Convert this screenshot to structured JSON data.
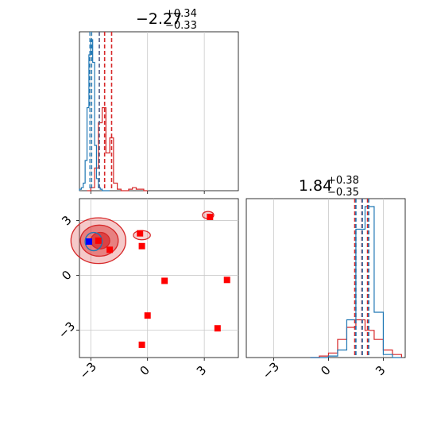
{
  "chart_data": {
    "type": "corner",
    "params": [
      {
        "median": -2.27,
        "plus": "+0.34",
        "minus": "−0.33",
        "range": [
          -3.6,
          4.8
        ]
      },
      {
        "median": 1.84,
        "plus": "+0.38",
        "minus": "−0.35",
        "range": [
          -4.5,
          4.2
        ]
      }
    ],
    "ticks": [
      -3,
      0,
      3
    ],
    "tick_labels": [
      "−3",
      "0",
      "3"
    ],
    "grid": true,
    "colors": {
      "sample_a": "#1f77b4",
      "sample_b": "#d62728",
      "marker_true": "#0000ff",
      "marker_points": "#ff0000"
    },
    "hist_a_bins": [
      -3.6,
      -3.5,
      -3.4,
      -3.3,
      -3.2,
      -3.1,
      -3.0,
      -2.9,
      -2.8,
      -2.7,
      -2.6,
      -2.5,
      -2.4,
      -2.3,
      -2.2,
      -2.1,
      -2.0
    ],
    "hist_a_counts": [
      0.01,
      0.02,
      0.05,
      0.2,
      0.55,
      0.9,
      1.0,
      0.85,
      0.3,
      0.08,
      0.02,
      0.01,
      0.0,
      0.0,
      0.0,
      0.0
    ],
    "hist_b_bins": [
      -3.2,
      -3.0,
      -2.8,
      -2.6,
      -2.4,
      -2.2,
      -2.0,
      -1.8,
      -1.6,
      -1.4,
      -1.2,
      -1.0,
      -0.8,
      -0.6,
      -0.4,
      -0.2,
      0.0
    ],
    "hist_b_counts": [
      0.0,
      0.02,
      0.15,
      0.45,
      0.55,
      0.25,
      0.35,
      0.05,
      0.01,
      0.0,
      0.0,
      0.01,
      0.02,
      0.01,
      0.01,
      0.0
    ],
    "quantiles_a_x": [
      -3.05,
      -2.55,
      -2.95
    ],
    "quantiles_b_x": [
      -2.55,
      -2.27,
      -1.9
    ],
    "quantiles_a_y": [
      1.5,
      1.85,
      2.2
    ],
    "quantiles_b_y": [
      1.45,
      1.84,
      2.15
    ],
    "hist_y_a_bins": [
      -1.0,
      -0.5,
      0.0,
      0.5,
      1.0,
      1.5,
      2.0,
      2.5,
      3.0,
      3.5,
      4.0
    ],
    "hist_y_a_counts": [
      0.0,
      0.0,
      0.01,
      0.05,
      0.25,
      0.85,
      1.0,
      0.3,
      0.02,
      0.0
    ],
    "hist_y_b_bins": [
      -1.0,
      -0.5,
      0.0,
      0.5,
      1.0,
      1.5,
      2.0,
      2.5,
      3.0,
      3.5,
      4.0
    ],
    "hist_y_b_counts": [
      0.0,
      0.01,
      0.03,
      0.12,
      0.2,
      0.25,
      0.18,
      0.12,
      0.05,
      0.02
    ],
    "true_point": {
      "x": -3.1,
      "y": 1.85
    },
    "points": [
      {
        "x": -2.6,
        "y": 1.9
      },
      {
        "x": -2.0,
        "y": 1.4
      },
      {
        "x": -0.4,
        "y": 2.3
      },
      {
        "x": -0.3,
        "y": 1.6
      },
      {
        "x": 0.9,
        "y": -0.3
      },
      {
        "x": 0.0,
        "y": -2.2
      },
      {
        "x": -0.3,
        "y": -3.8
      },
      {
        "x": 3.3,
        "y": 3.2
      },
      {
        "x": 4.2,
        "y": -0.25
      },
      {
        "x": 3.7,
        "y": -2.9
      }
    ],
    "contours": [
      {
        "cx": -2.6,
        "cy": 1.9,
        "rx": 1.45,
        "ry": 1.25,
        "level": 0.95
      },
      {
        "cx": -2.55,
        "cy": 1.9,
        "rx": 1.0,
        "ry": 0.85,
        "level": 0.68
      },
      {
        "cx": -2.5,
        "cy": 1.9,
        "rx": 0.5,
        "ry": 0.45,
        "level": 0.35
      }
    ],
    "satellite_contours": [
      {
        "cx": -0.3,
        "cy": 2.2,
        "rx": 0.45,
        "ry": 0.25
      },
      {
        "cx": 3.2,
        "cy": 3.3,
        "rx": 0.3,
        "ry": 0.2
      }
    ]
  }
}
